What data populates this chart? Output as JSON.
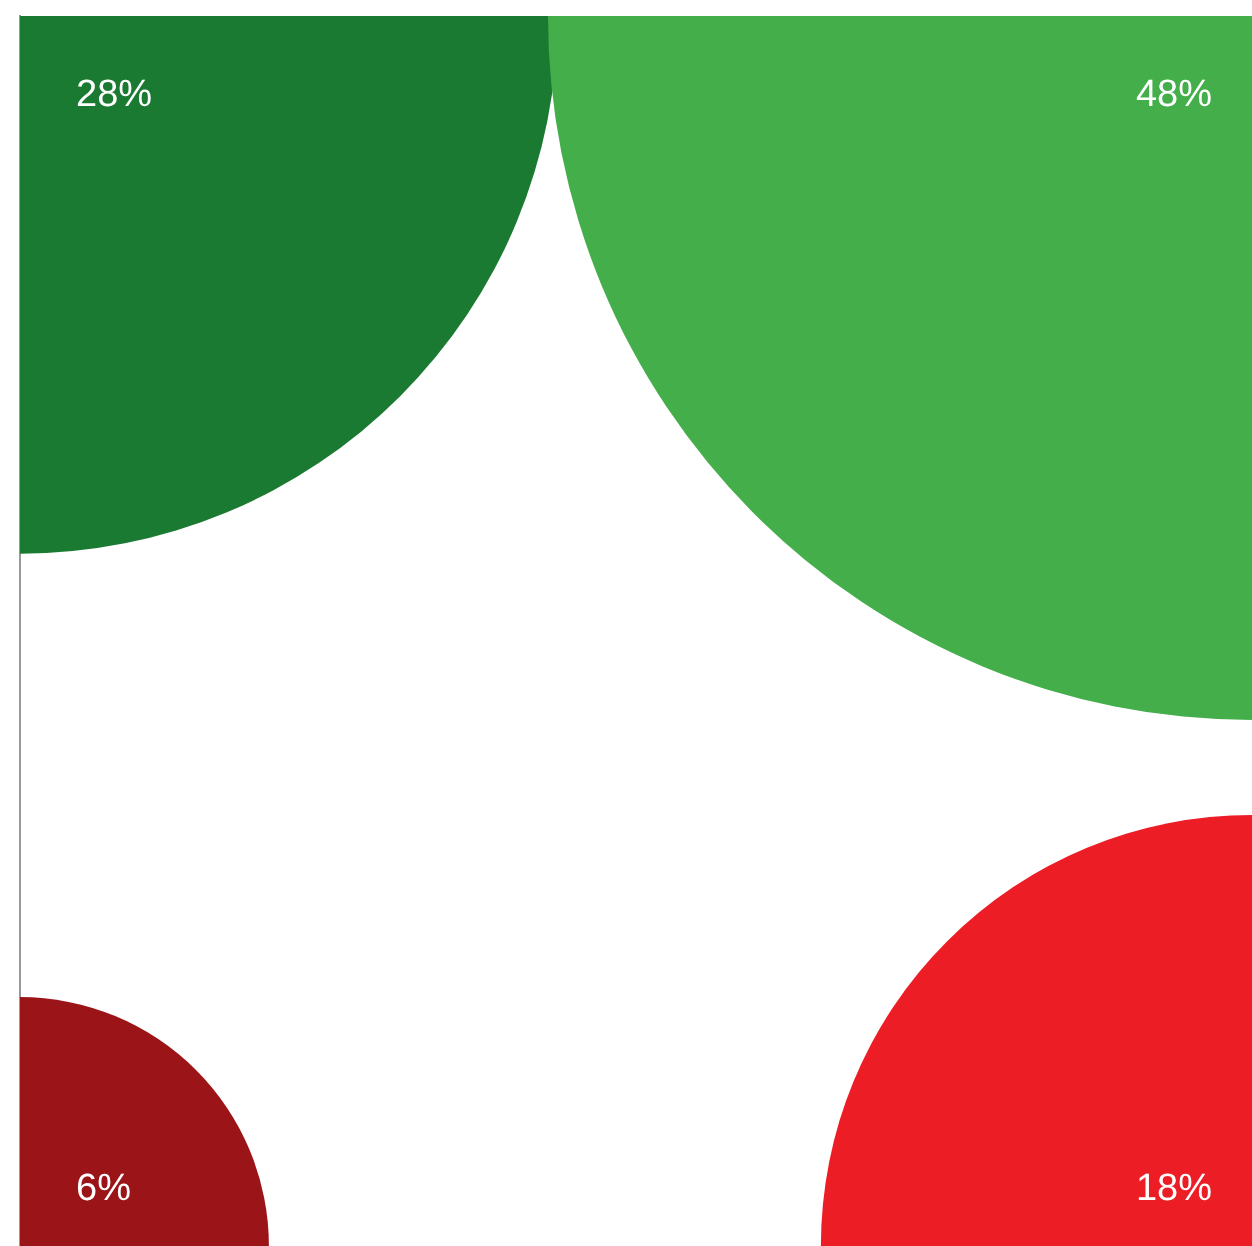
{
  "chart_data": {
    "type": "other",
    "categories": [
      null,
      null,
      null,
      null
    ],
    "values": [
      28,
      48,
      6,
      18
    ],
    "colors": [
      "#1a7a31",
      "#44ae4b",
      "#9b1518",
      "#ed1d25"
    ],
    "value_labels": [
      "28%",
      "48%",
      "6%",
      "18%"
    ]
  }
}
